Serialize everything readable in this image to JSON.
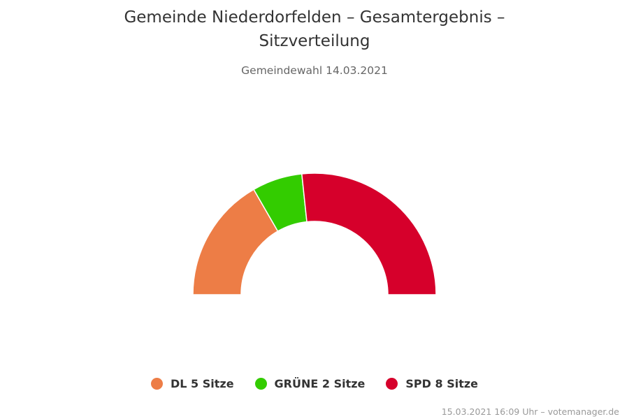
{
  "title_line1": "Gemeinde Niederdorfelden – Gesamtergebnis –",
  "title_line2": "Sitzverteilung",
  "subtitle": "Gemeindewahl 14.03.2021",
  "credits": "15.03.2021 16:09 Uhr – votemanager.de",
  "chart_data": {
    "type": "pie",
    "variant": "semi-circle",
    "total_seats": 15,
    "categories": [
      "DL",
      "GRÜNE",
      "SPD"
    ],
    "values": [
      5,
      2,
      8
    ],
    "unit": "Sitze",
    "colors": [
      "#ED7D46",
      "#33CC00",
      "#D6002B"
    ],
    "legend_placement": "bottom"
  },
  "legend": [
    {
      "label": "DL 5 Sitze",
      "color": "#ED7D46"
    },
    {
      "label": "GRÜNE 2 Sitze",
      "color": "#33CC00"
    },
    {
      "label": "SPD 8 Sitze",
      "color": "#D6002B"
    }
  ]
}
